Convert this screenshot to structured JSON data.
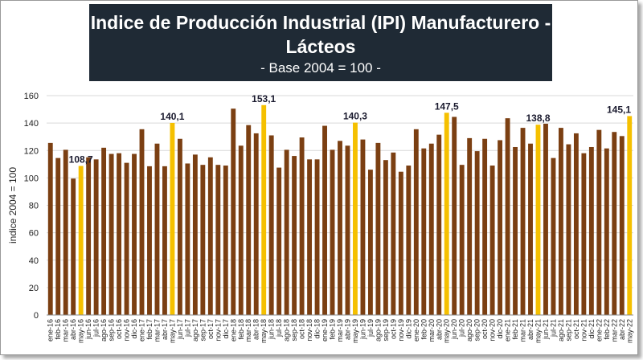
{
  "title": {
    "line1": "Indice de Producción Industrial (IPI) Manufacturero -",
    "line2": "Lácteos",
    "subtitle": "- Base 2004 = 100 -"
  },
  "colors": {
    "normal_bar": "#7b3f12",
    "highlight_bar": "#f5c000",
    "title_bg": "#1f2a35",
    "grid": "#d9d9d9"
  },
  "chart_data": {
    "type": "bar",
    "ylabel": "indice 2004 = 100",
    "xlabel": "",
    "ylim": [
      0,
      160
    ],
    "yticks": [
      0,
      20,
      40,
      60,
      80,
      100,
      120,
      140,
      160
    ],
    "grid": true,
    "categories": [
      "ene-16",
      "feb-16",
      "mar-16",
      "abr-16",
      "may-16",
      "jun-16",
      "jul-16",
      "ago-16",
      "sep-16",
      "oct-16",
      "nov-16",
      "dic-16",
      "ene-17",
      "feb-17",
      "mar-17",
      "abr-17",
      "may-17",
      "jun-17",
      "jul-17",
      "ago-17",
      "sep-17",
      "oct-17",
      "nov-17",
      "dic-17",
      "ene-18",
      "feb-18",
      "mar-18",
      "abr-18",
      "may-18",
      "jun-18",
      "jul-18",
      "ago-18",
      "sep-18",
      "oct-18",
      "nov-18",
      "dic-18",
      "ene-19",
      "feb-19",
      "mar-19",
      "abr-19",
      "may-19",
      "jun-19",
      "jul-19",
      "ago-19",
      "sep-19",
      "oct-19",
      "nov-19",
      "dic-19",
      "ene-20",
      "feb-20",
      "mar-20",
      "abr-20",
      "may-20",
      "jun-20",
      "jul-20",
      "ago-20",
      "sep-20",
      "oct-20",
      "nov-20",
      "dic-20",
      "ene-21",
      "feb-21",
      "mar-21",
      "abr-21",
      "may-21",
      "jun-21",
      "jul-21",
      "ago-21",
      "sep-21",
      "oct-21",
      "nov-21",
      "dic-21",
      "ene-22",
      "feb-22",
      "mar-22",
      "abr-22",
      "may-22"
    ],
    "values": [
      125.5,
      114.5,
      120.5,
      99.5,
      108.7,
      115,
      113.5,
      122,
      117.5,
      118,
      111,
      117.5,
      135.5,
      108.5,
      125,
      108.5,
      140.1,
      128.5,
      110.5,
      117,
      109.5,
      115,
      109.5,
      109,
      150.5,
      123.5,
      138.5,
      132.5,
      153.1,
      131,
      107.5,
      120.5,
      116,
      129.5,
      113.5,
      113.5,
      138,
      120.5,
      127,
      123.5,
      140.3,
      128,
      106,
      125.5,
      113,
      118.5,
      104.5,
      109,
      135.5,
      121.5,
      125,
      131.5,
      147.5,
      144.5,
      109.5,
      129,
      119.5,
      128.5,
      109,
      127.5,
      143.5,
      122.5,
      136.5,
      125,
      138.8,
      139.5,
      114.5,
      136.5,
      124.5,
      132.5,
      118,
      122.5,
      135,
      121.5,
      133.5,
      130.5,
      145.1
    ],
    "highlighted": [
      "may-16",
      "may-17",
      "may-18",
      "may-19",
      "may-20",
      "may-21",
      "may-22"
    ],
    "data_labels": [
      {
        "category": "may-16",
        "text": "108,7"
      },
      {
        "category": "may-17",
        "text": "140,1"
      },
      {
        "category": "may-18",
        "text": "153,1"
      },
      {
        "category": "may-19",
        "text": "140,3"
      },
      {
        "category": "may-20",
        "text": "147,5"
      },
      {
        "category": "may-21",
        "text": "138,8"
      },
      {
        "category": "may-22",
        "text": "145,1"
      }
    ]
  }
}
